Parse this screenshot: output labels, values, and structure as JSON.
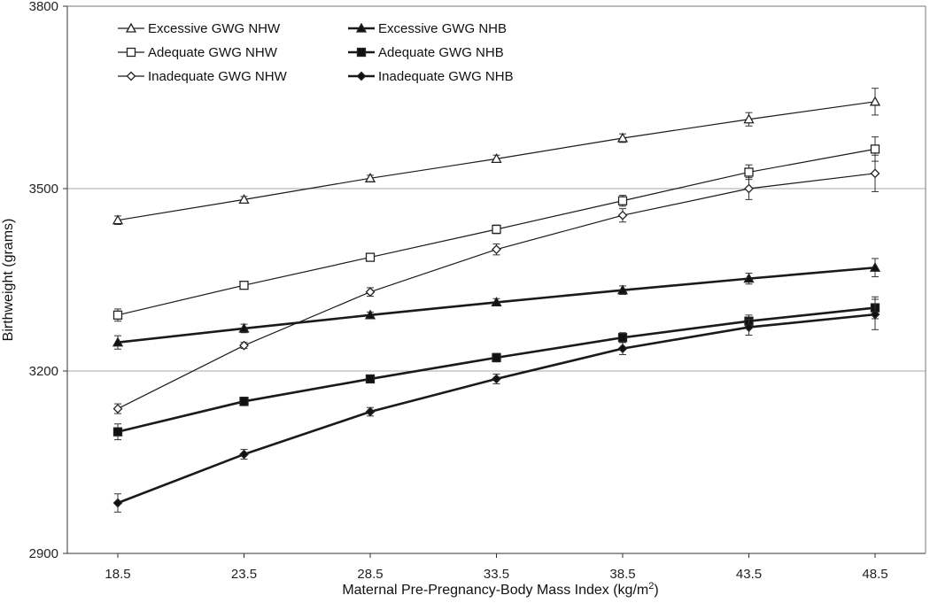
{
  "chart_data": {
    "type": "line",
    "title": "",
    "xlabel": "Maternal Pre-Pregnancy-Body Mass Index (kg/m",
    "xlabel_sup": "2",
    "xlabel_close": ")",
    "ylabel": "Birthweight (grams)",
    "x": [
      18.5,
      23.5,
      28.5,
      33.5,
      38.5,
      43.5,
      48.5
    ],
    "x_tick_labels": [
      "18.5",
      "23.5",
      "28.5",
      "33.5",
      "38.5",
      "43.5",
      "48.5"
    ],
    "xlim": [
      16.5,
      50.5
    ],
    "ylim": [
      2900,
      3800
    ],
    "y_ticks": [
      2900,
      3200,
      3500,
      3800
    ],
    "y_tick_labels": [
      "2900",
      "3200",
      "3500",
      "3800"
    ],
    "grid": true,
    "legend_position": "top-left",
    "series": [
      {
        "name": "Excessive GWG NHW",
        "marker": "triangle-open",
        "line": "thin",
        "values": [
          3448,
          3482,
          3517,
          3549,
          3583,
          3614,
          3643
        ],
        "error": [
          7,
          5,
          5,
          6,
          7,
          11,
          22
        ]
      },
      {
        "name": "Excessive GWG NHB",
        "marker": "triangle-filled",
        "line": "thick",
        "values": [
          3247,
          3270,
          3292,
          3313,
          3333,
          3352,
          3370
        ],
        "error": [
          11,
          7,
          5,
          6,
          7,
          9,
          15
        ]
      },
      {
        "name": "Adequate GWG NHW",
        "marker": "square-open",
        "line": "thin",
        "values": [
          3292,
          3341,
          3387,
          3433,
          3480,
          3527,
          3565
        ],
        "error": [
          10,
          5,
          5,
          7,
          9,
          12,
          20
        ]
      },
      {
        "name": "Adequate GWG NHB",
        "marker": "square-filled",
        "line": "thick",
        "values": [
          3100,
          3150,
          3187,
          3222,
          3255,
          3282,
          3304
        ],
        "error": [
          13,
          7,
          6,
          7,
          8,
          10,
          18
        ]
      },
      {
        "name": "Inadequate GWG NHW",
        "marker": "diamond-open",
        "line": "thin",
        "values": [
          3138,
          3242,
          3330,
          3400,
          3456,
          3500,
          3525
        ],
        "error": [
          8,
          5,
          7,
          9,
          11,
          18,
          30
        ]
      },
      {
        "name": "Inadequate GWG NHB",
        "marker": "diamond-filled",
        "line": "thick",
        "values": [
          2983,
          3063,
          3133,
          3187,
          3237,
          3272,
          3293
        ],
        "error": [
          15,
          8,
          7,
          8,
          10,
          13,
          25
        ]
      }
    ],
    "legend_order": [
      0,
      1,
      2,
      3,
      4,
      5
    ]
  }
}
